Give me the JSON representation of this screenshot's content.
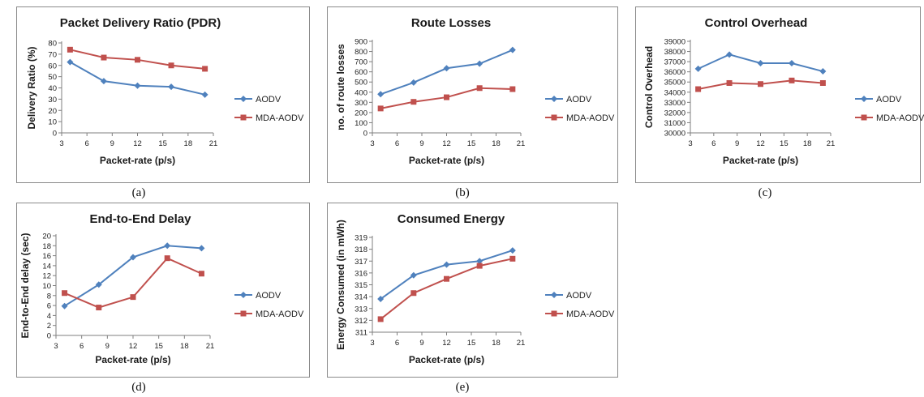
{
  "colors": {
    "aodv": "#4f81bd",
    "mda_aodv": "#c0504d",
    "axis": "#7f7f7f"
  },
  "chart_data": [
    {
      "id": "a",
      "type": "line",
      "caption": "(a)",
      "title": "Packet Delivery Ratio (PDR)",
      "xlabel": "Packet-rate (p/s)",
      "ylabel": "Delivery Ratio (%)",
      "xticks": [
        "3",
        "6",
        "9",
        "12",
        "15",
        "18",
        "21"
      ],
      "xticklabels": [
        "3",
        "6",
        "9",
        "12",
        "15",
        "18",
        "21"
      ],
      "xlim": [
        3,
        21
      ],
      "yticks": [
        0,
        10,
        20,
        30,
        40,
        50,
        60,
        70,
        80
      ],
      "yticklabels": [
        "0",
        "10",
        "20",
        "30",
        "40",
        "50",
        "60",
        "70",
        "80"
      ],
      "ylim": [
        0,
        80
      ],
      "legend": "right",
      "series": [
        {
          "name": "AODV",
          "marker": "diamond",
          "x": [
            4,
            8,
            12,
            16,
            20
          ],
          "y": [
            63,
            46,
            42,
            41,
            34
          ]
        },
        {
          "name": "MDA-AODV",
          "marker": "square",
          "x": [
            4,
            8,
            12,
            16,
            20
          ],
          "y": [
            74,
            67,
            65,
            60,
            57
          ]
        }
      ]
    },
    {
      "id": "b",
      "type": "line",
      "caption": "(b)",
      "title": "Route Losses",
      "xlabel": "Packet-rate (p/s)",
      "ylabel": "no. of route losses",
      "xlim": [
        3,
        21
      ],
      "xticks": [
        3,
        6,
        9,
        12,
        15,
        18,
        21
      ],
      "xticklabels": [
        "3",
        "6",
        "9",
        "12",
        "15",
        "18",
        "21"
      ],
      "yticks": [
        0,
        100,
        200,
        300,
        400,
        500,
        600,
        700,
        800,
        900
      ],
      "yticklabels": [
        "0",
        "100",
        "200",
        "300",
        "400",
        "500",
        "600",
        "700",
        "800",
        "900"
      ],
      "ylim": [
        0,
        900
      ],
      "legend": "right",
      "series": [
        {
          "name": "AODV",
          "marker": "diamond",
          "x": [
            4,
            8,
            12,
            16,
            20
          ],
          "y": [
            380,
            495,
            635,
            680,
            815
          ]
        },
        {
          "name": "MDA-AODV",
          "marker": "square",
          "x": [
            4,
            8,
            12,
            16,
            20
          ],
          "y": [
            240,
            305,
            350,
            440,
            430
          ]
        }
      ]
    },
    {
      "id": "c",
      "type": "line",
      "caption": "(c)",
      "title": "Control Overhead",
      "xlabel": "Packet-rate (p/s)",
      "ylabel": "Control Overhead",
      "xlim": [
        3,
        21
      ],
      "xticks": [
        3,
        6,
        9,
        12,
        15,
        18,
        21
      ],
      "xticklabels": [
        "3",
        "6",
        "9",
        "12",
        "15",
        "18",
        "21"
      ],
      "yticks": [
        30000,
        31000,
        32000,
        33000,
        34000,
        35000,
        36000,
        37000,
        38000,
        39000
      ],
      "yticklabels": [
        "30000",
        "31000",
        "32000",
        "33000",
        "34000",
        "35000",
        "36000",
        "37000",
        "38000",
        "39000"
      ],
      "ylim": [
        30000,
        39000
      ],
      "legend": "right",
      "series": [
        {
          "name": "AODV",
          "marker": "diamond",
          "x": [
            4,
            8,
            12,
            16,
            20
          ],
          "y": [
            36300,
            37700,
            36850,
            36850,
            36050
          ]
        },
        {
          "name": "MDA-AODV",
          "marker": "square",
          "x": [
            4,
            8,
            12,
            16,
            20
          ],
          "y": [
            34300,
            34900,
            34800,
            35150,
            34900
          ]
        }
      ]
    },
    {
      "id": "d",
      "type": "line",
      "caption": "(d)",
      "title": "End-to-End Delay",
      "xlabel": "Packet-rate (p/s)",
      "ylabel": "End-to-End delay (sec)",
      "xlim": [
        3,
        21
      ],
      "xticks": [
        3,
        6,
        9,
        12,
        15,
        18,
        21
      ],
      "xticklabels": [
        "3",
        "6",
        "9",
        "12",
        "15",
        "18",
        "21"
      ],
      "yticks": [
        0,
        2,
        4,
        6,
        8,
        10,
        12,
        14,
        16,
        18,
        20
      ],
      "yticklabels": [
        "0",
        "2",
        "4",
        "6",
        "8",
        "10",
        "12",
        "14",
        "16",
        "18",
        "20"
      ],
      "ylim": [
        0,
        20
      ],
      "legend": "right",
      "series": [
        {
          "name": "AODV",
          "marker": "diamond",
          "x": [
            4,
            8,
            12,
            16,
            20
          ],
          "y": [
            5.9,
            10.2,
            15.7,
            18.0,
            17.5
          ]
        },
        {
          "name": "MDA-AODV",
          "marker": "square",
          "x": [
            4,
            8,
            12,
            16,
            20
          ],
          "y": [
            8.5,
            5.6,
            7.7,
            15.5,
            12.4
          ]
        }
      ]
    },
    {
      "id": "e",
      "type": "line",
      "caption": "(e)",
      "title": "Consumed Energy",
      "xlabel": "Packet-rate (p/s)",
      "ylabel": "Energy Consumed (in mWh)",
      "xlim": [
        3,
        21
      ],
      "xticks": [
        3,
        6,
        9,
        12,
        15,
        18,
        21
      ],
      "xticklabels": [
        "3",
        "6",
        "9",
        "12",
        "15",
        "18",
        "21"
      ],
      "yticks": [
        311,
        312,
        313,
        314,
        315,
        316,
        317,
        318,
        319
      ],
      "yticklabels": [
        "311",
        "312",
        "313",
        "314",
        "315",
        "316",
        "317",
        "318",
        "319"
      ],
      "ylim": [
        311,
        319
      ],
      "legend": "right",
      "series": [
        {
          "name": "AODV",
          "marker": "diamond",
          "x": [
            4,
            8,
            12,
            16,
            20
          ],
          "y": [
            313.8,
            315.8,
            316.7,
            317.0,
            317.9
          ]
        },
        {
          "name": "MDA-AODV",
          "marker": "square",
          "x": [
            4,
            8,
            12,
            16,
            20
          ],
          "y": [
            312.1,
            314.3,
            315.5,
            316.6,
            317.2
          ]
        }
      ]
    }
  ]
}
